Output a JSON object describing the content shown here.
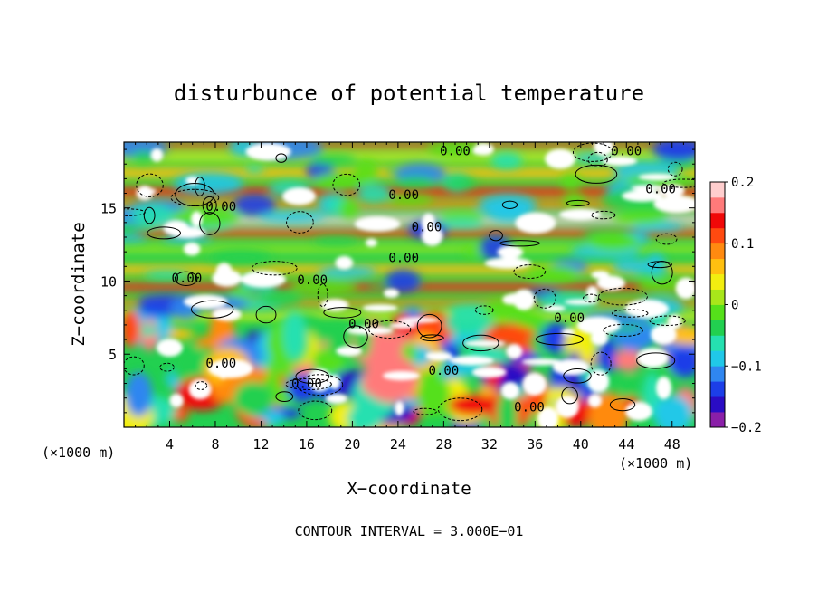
{
  "chart_data": {
    "type": "heatmap",
    "title": "disturbunce of potential temperature",
    "xlabel": "X−coordinate",
    "ylabel": "Z−coordinate",
    "x_unit_label": "(×1000 m)",
    "z_unit_label": "(×1000 m)",
    "footer": "CONTOUR INTERVAL = 3.000E−01",
    "xlim": [
      0,
      50
    ],
    "ylim": [
      0,
      19.5
    ],
    "xticks": [
      4,
      8,
      12,
      16,
      20,
      24,
      28,
      32,
      36,
      40,
      44,
      48
    ],
    "yticks": [
      5,
      10,
      15
    ],
    "colorbar": {
      "range": [
        -0.2,
        0.2
      ],
      "ticks": [
        0.2,
        0.1,
        0,
        -0.1,
        -0.2
      ],
      "tick_labels": [
        "0.2",
        "0.1",
        "0",
        "−0.1",
        "−0.2"
      ],
      "colors": [
        "#8a1fa8",
        "#2a0cc4",
        "#1c3ee8",
        "#2f86f0",
        "#20c8e8",
        "#25e0b0",
        "#22d050",
        "#55e01a",
        "#a8e61a",
        "#f2ee10",
        "#ffc010",
        "#ff8a10",
        "#ff4a10",
        "#f00808",
        "#ff7a7a",
        "#ffcece"
      ]
    },
    "contour_labels": [
      {
        "text": "0.00",
        "x": 29,
        "z": 18.9
      },
      {
        "text": "0.00",
        "x": 44,
        "z": 18.9
      },
      {
        "text": "0.00",
        "x": 47,
        "z": 16.3
      },
      {
        "text": "0.00",
        "x": 24.5,
        "z": 15.9
      },
      {
        "text": "0.00",
        "x": 8.5,
        "z": 15.1
      },
      {
        "text": "0.00",
        "x": 26.5,
        "z": 13.7
      },
      {
        "text": "0.00",
        "x": 24.5,
        "z": 11.6
      },
      {
        "text": "0.00",
        "x": 5.5,
        "z": 10.2
      },
      {
        "text": "0.00",
        "x": 16.5,
        "z": 10.1
      },
      {
        "text": "0.00",
        "x": 21,
        "z": 7.1
      },
      {
        "text": "0.00",
        "x": 39,
        "z": 7.5
      },
      {
        "text": "0.00",
        "x": 8.5,
        "z": 4.4
      },
      {
        "text": "0.00",
        "x": 28,
        "z": 3.9
      },
      {
        "text": "0.00",
        "x": 16,
        "z": 3.0
      },
      {
        "text": "0.00",
        "x": 35.5,
        "z": 1.4
      }
    ]
  }
}
